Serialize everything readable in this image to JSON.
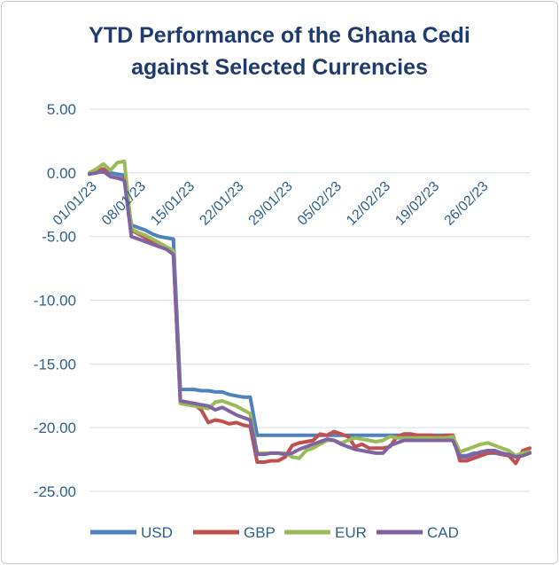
{
  "chart_data": {
    "type": "line",
    "title_lines": [
      "YTD Performance of the Ghana Cedi",
      "against Selected Currencies"
    ],
    "title": "YTD Performance of the Ghana Cedi against Selected Currencies",
    "xlabel": "",
    "ylabel": "",
    "ylim": [
      -25,
      5
    ],
    "yticks": [
      5,
      0,
      -5,
      -10,
      -15,
      -20,
      -25
    ],
    "ytick_labels": [
      "5.00",
      "0.00",
      "-5.00",
      "-10.00",
      "-15.00",
      "-20.00",
      "-25.00"
    ],
    "x_tick_days": [
      1,
      8,
      15,
      22,
      29,
      36,
      43,
      50,
      57
    ],
    "x_tick_labels": [
      "01/01/23",
      "08/01/23",
      "15/01/23",
      "22/01/23",
      "29/01/23",
      "05/02/23",
      "12/02/23",
      "19/02/23",
      "26/02/23"
    ],
    "grid": true,
    "legend_position": "bottom",
    "series": [
      {
        "name": "USD",
        "color": "#4f81bd",
        "x": [
          1,
          2,
          3,
          4,
          5,
          6,
          7,
          8,
          9,
          10,
          11,
          12,
          13,
          14,
          15,
          16,
          17,
          18,
          19,
          20,
          21,
          22,
          23,
          24,
          25,
          26,
          27,
          28,
          29,
          30,
          31,
          32,
          33,
          34,
          35,
          36,
          37,
          38,
          39,
          40,
          41,
          42,
          43,
          44,
          45,
          46,
          47,
          48,
          49,
          50,
          51,
          52,
          53,
          54,
          55,
          56,
          57,
          58,
          59,
          60,
          61,
          62,
          63,
          64
        ],
        "values": [
          0.0,
          0.2,
          0.3,
          0.0,
          -0.1,
          -0.2,
          -4.1,
          -4.3,
          -4.5,
          -4.8,
          -5.0,
          -5.1,
          -5.2,
          -17.0,
          -17.0,
          -17.0,
          -17.1,
          -17.1,
          -17.2,
          -17.2,
          -17.4,
          -17.5,
          -17.6,
          -17.6,
          -20.6,
          -20.6,
          -20.6,
          -20.6,
          -20.6,
          -20.6,
          -20.6,
          -20.6,
          -20.6,
          -20.6,
          -20.6,
          -20.6,
          -20.6,
          -20.6,
          -20.6,
          -20.6,
          -20.6,
          -20.6,
          -20.6,
          -20.6,
          -20.6,
          -20.6,
          -20.6,
          -20.6,
          -20.6,
          -20.6,
          -20.6,
          -20.6,
          -20.6,
          -22.2,
          -22.2,
          -22.0,
          -22.0,
          -22.0,
          -22.0,
          -22.1,
          -22.1,
          -22.2,
          -22.0,
          -22.0
        ]
      },
      {
        "name": "GBP",
        "color": "#c0504d",
        "x": [
          1,
          2,
          3,
          4,
          5,
          6,
          7,
          8,
          9,
          10,
          11,
          12,
          13,
          14,
          15,
          16,
          17,
          18,
          19,
          20,
          21,
          22,
          23,
          24,
          25,
          26,
          27,
          28,
          29,
          30,
          31,
          32,
          33,
          34,
          35,
          36,
          37,
          38,
          39,
          40,
          41,
          42,
          43,
          44,
          45,
          46,
          47,
          48,
          49,
          50,
          51,
          52,
          53,
          54,
          55,
          56,
          57,
          58,
          59,
          60,
          61,
          62,
          63,
          64
        ],
        "values": [
          -0.1,
          0.1,
          0.3,
          -0.3,
          -0.4,
          -0.5,
          -4.5,
          -4.8,
          -5.1,
          -5.4,
          -5.6,
          -5.9,
          -6.3,
          -18.0,
          -18.1,
          -18.2,
          -18.6,
          -19.6,
          -19.4,
          -19.5,
          -19.7,
          -19.6,
          -19.8,
          -19.9,
          -22.7,
          -22.7,
          -22.6,
          -22.6,
          -22.3,
          -21.4,
          -21.2,
          -21.1,
          -21.0,
          -20.5,
          -20.6,
          -20.3,
          -20.5,
          -20.7,
          -21.5,
          -21.3,
          -21.6,
          -21.6,
          -21.6,
          -21.5,
          -20.7,
          -20.5,
          -20.5,
          -20.6,
          -20.6,
          -20.6,
          -20.7,
          -20.6,
          -20.6,
          -22.6,
          -22.6,
          -22.4,
          -22.2,
          -22.0,
          -21.9,
          -22.1,
          -22.2,
          -22.8,
          -21.8,
          -21.6
        ]
      },
      {
        "name": "EUR",
        "color": "#9bbb59",
        "x": [
          1,
          2,
          3,
          4,
          5,
          6,
          7,
          8,
          9,
          10,
          11,
          12,
          13,
          14,
          15,
          16,
          17,
          18,
          19,
          20,
          21,
          22,
          23,
          24,
          25,
          26,
          27,
          28,
          29,
          30,
          31,
          32,
          33,
          34,
          35,
          36,
          37,
          38,
          39,
          40,
          41,
          42,
          43,
          44,
          45,
          46,
          47,
          48,
          49,
          50,
          51,
          52,
          53,
          54,
          55,
          56,
          57,
          58,
          59,
          60,
          61,
          62,
          63,
          64
        ],
        "values": [
          0.0,
          0.3,
          0.7,
          0.2,
          0.8,
          0.9,
          -4.4,
          -4.7,
          -4.9,
          -5.2,
          -5.5,
          -5.8,
          -6.1,
          -18.1,
          -18.2,
          -18.3,
          -18.4,
          -18.5,
          -18.0,
          -17.9,
          -18.1,
          -18.3,
          -18.6,
          -18.9,
          -22.0,
          -22.0,
          -22.0,
          -22.0,
          -22.0,
          -22.3,
          -22.4,
          -21.8,
          -21.6,
          -21.3,
          -21.0,
          -21.0,
          -21.2,
          -21.0,
          -20.8,
          -20.9,
          -21.0,
          -21.1,
          -21.0,
          -20.7,
          -20.8,
          -20.8,
          -20.8,
          -20.8,
          -20.8,
          -20.8,
          -20.8,
          -20.8,
          -20.7,
          -21.9,
          -21.7,
          -21.5,
          -21.3,
          -21.2,
          -21.4,
          -21.6,
          -21.8,
          -22.2,
          -22.0,
          -21.9
        ]
      },
      {
        "name": "CAD",
        "color": "#8064a2",
        "x": [
          1,
          2,
          3,
          4,
          5,
          6,
          7,
          8,
          9,
          10,
          11,
          12,
          13,
          14,
          15,
          16,
          17,
          18,
          19,
          20,
          21,
          22,
          23,
          24,
          25,
          26,
          27,
          28,
          29,
          30,
          31,
          32,
          33,
          34,
          35,
          36,
          37,
          38,
          39,
          40,
          41,
          42,
          43,
          44,
          45,
          46,
          47,
          48,
          49,
          50,
          51,
          52,
          53,
          54,
          55,
          56,
          57,
          58,
          59,
          60,
          61,
          62,
          63,
          64
        ],
        "values": [
          -0.1,
          0.0,
          0.1,
          -0.3,
          -0.4,
          -0.6,
          -5.0,
          -5.2,
          -5.4,
          -5.6,
          -5.8,
          -6.0,
          -6.4,
          -17.9,
          -18.0,
          -18.1,
          -18.2,
          -18.3,
          -18.6,
          -18.4,
          -18.7,
          -19.0,
          -19.2,
          -19.4,
          -22.1,
          -22.1,
          -22.0,
          -22.0,
          -22.1,
          -22.0,
          -21.7,
          -21.5,
          -21.3,
          -21.1,
          -20.9,
          -21.0,
          -21.3,
          -21.5,
          -21.7,
          -21.8,
          -21.9,
          -22.0,
          -22.0,
          -21.4,
          -21.2,
          -21.0,
          -21.0,
          -21.0,
          -21.0,
          -21.0,
          -21.0,
          -21.0,
          -21.0,
          -22.3,
          -22.3,
          -22.1,
          -21.9,
          -21.8,
          -21.8,
          -22.0,
          -22.1,
          -22.3,
          -22.2,
          -22.0
        ]
      }
    ]
  }
}
